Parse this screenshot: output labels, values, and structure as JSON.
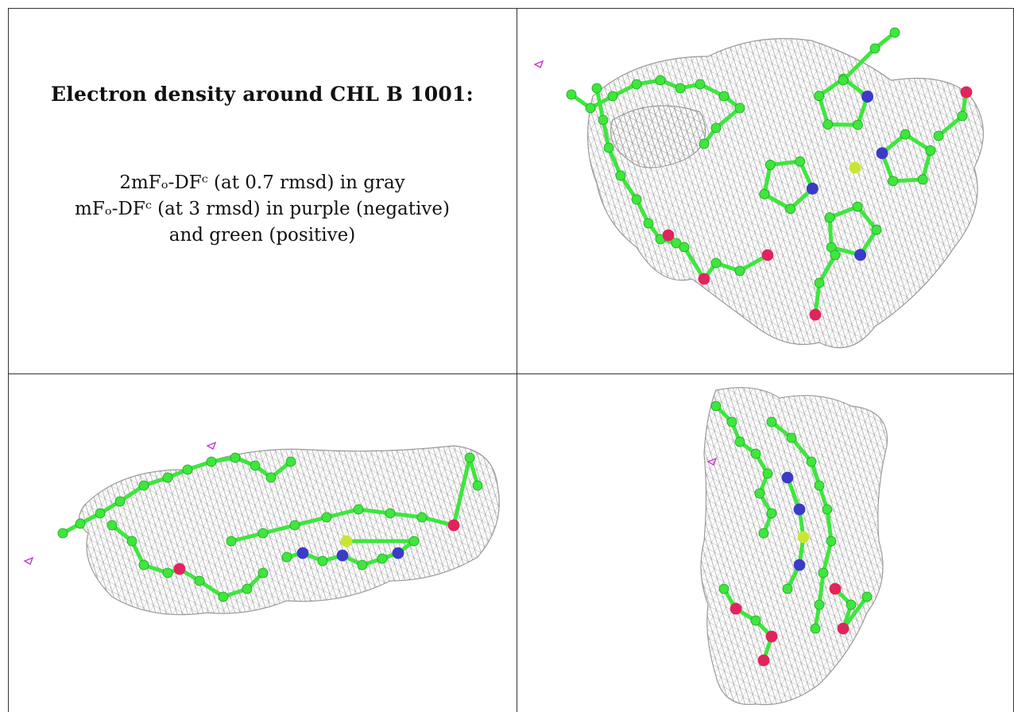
{
  "caption": {
    "title": "Electron density around CHL B 1001:",
    "line1": "2mFₒ-DFᶜ (at 0.7 rmsd) in gray",
    "line2": "mFₒ-DFᶜ (at 3 rmsd) in purple (negative)",
    "line3": "and green (positive)"
  },
  "colors": {
    "mesh": "#9a9a9a",
    "carbon": "#3ee63e",
    "carbon_dark": "#1aa41a",
    "nitrogen": "#3b3bc8",
    "oxygen": "#e0245e",
    "magnesium": "#c8e632",
    "negative_density": "#cc33cc",
    "border": "#333333"
  },
  "panels": [
    {
      "name": "view-top-right"
    },
    {
      "name": "view-bottom-left"
    },
    {
      "name": "view-bottom-right"
    }
  ]
}
